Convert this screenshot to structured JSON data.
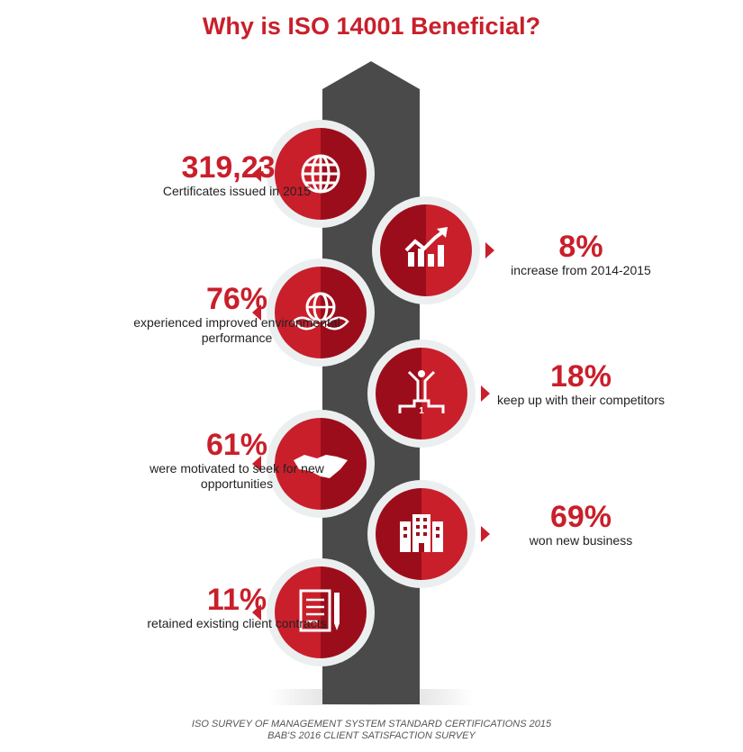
{
  "title": "Why is ISO 14001 Beneficial?",
  "colors": {
    "accent": "#c91f2b",
    "accent_dark": "#9c0d1b",
    "ring": "#eceff0",
    "bar": "#4a4a4a"
  },
  "stats": [
    {
      "value": "319,234",
      "label": "Certificates issued in 2015",
      "icon": "globe-icon",
      "side": "left"
    },
    {
      "value": "8%",
      "label": "increase from 2014-2015",
      "icon": "growth-chart-icon",
      "side": "right"
    },
    {
      "value": "76%",
      "label": "experienced improved environmental performance",
      "icon": "eco-globe-icon",
      "side": "left"
    },
    {
      "value": "18%",
      "label": "keep up with their competitors",
      "icon": "winner-podium-icon",
      "side": "right"
    },
    {
      "value": "61%",
      "label": "were motivated to seek for new opportunities",
      "icon": "handshake-icon",
      "side": "left"
    },
    {
      "value": "69%",
      "label": "won new business",
      "icon": "building-icon",
      "side": "right"
    },
    {
      "value": "11%",
      "label": "retained existing client contracts",
      "icon": "contract-document-icon",
      "side": "left"
    }
  ],
  "podium_number": "1",
  "sources": [
    "ISO SURVEY OF MANAGEMENT SYSTEM STANDARD CERTIFICATIONS 2015",
    "BAB'S 2016 CLIENT SATISFACTION SURVEY"
  ]
}
